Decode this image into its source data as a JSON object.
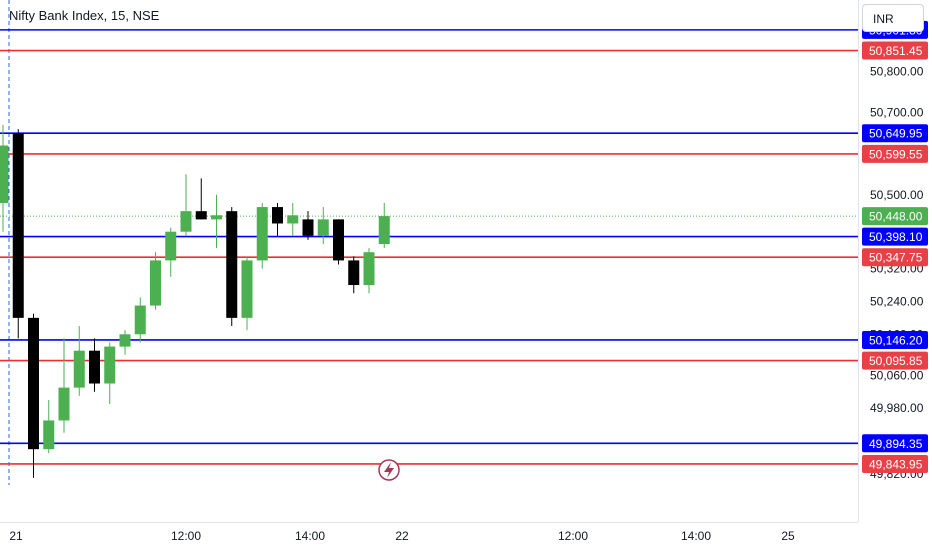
{
  "header": {
    "title": "Nifty Bank Index, 15, NSE",
    "currency": "INR"
  },
  "colors": {
    "blue": "#0000ff",
    "red": "#ef2f2f",
    "green": "#4caf50",
    "current_green": "#4caf50",
    "black": "#000000",
    "label_red": "#e84046",
    "dotted_current": "#4caf50"
  },
  "icons": {
    "event_marker": "lightning-icon"
  },
  "chart_data": {
    "type": "candlestick",
    "title": "Nifty Bank Index, 15, NSE",
    "ylim": [
      49800,
      50960
    ],
    "y_ticks": [
      "50,800.00",
      "50,700.00",
      "50,500.00",
      "50,320.00",
      "50,240.00",
      "50,160.00",
      "50,060.00",
      "49,980.00",
      "49,820.00"
    ],
    "x_labels": [
      "21",
      "12:00",
      "14:00",
      "22",
      "12:00",
      "14:00",
      "25"
    ],
    "current_price": {
      "value": 50448.0,
      "label": "50,448.00"
    },
    "levels": [
      {
        "value": 50901.8,
        "label": "50,901.80",
        "color": "blue"
      },
      {
        "value": 50851.45,
        "label": "50,851.45",
        "color": "red"
      },
      {
        "value": 50649.95,
        "label": "50,649.95",
        "color": "blue"
      },
      {
        "value": 50599.55,
        "label": "50,599.55",
        "color": "red"
      },
      {
        "value": 50398.1,
        "label": "50,398.10",
        "color": "blue"
      },
      {
        "value": 50347.75,
        "label": "50,347.75",
        "color": "red"
      },
      {
        "value": 50146.2,
        "label": "50,146.20",
        "color": "blue"
      },
      {
        "value": 50095.85,
        "label": "50,095.85",
        "color": "red"
      },
      {
        "value": 49894.35,
        "label": "49,894.35",
        "color": "blue"
      },
      {
        "value": 49843.95,
        "label": "49,843.95",
        "color": "red"
      }
    ],
    "candles": [
      {
        "o": 50480,
        "h": 50670,
        "l": 50410,
        "c": 50620
      },
      {
        "o": 50650,
        "h": 50660,
        "l": 50150,
        "c": 50200
      },
      {
        "o": 50200,
        "h": 50210,
        "l": 49810,
        "c": 49880
      },
      {
        "o": 49880,
        "h": 50000,
        "l": 49870,
        "c": 49950
      },
      {
        "o": 49950,
        "h": 50150,
        "l": 49920,
        "c": 50030
      },
      {
        "o": 50030,
        "h": 50180,
        "l": 50010,
        "c": 50120
      },
      {
        "o": 50120,
        "h": 50150,
        "l": 50020,
        "c": 50040
      },
      {
        "o": 50040,
        "h": 50140,
        "l": 49990,
        "c": 50130
      },
      {
        "o": 50130,
        "h": 50170,
        "l": 50110,
        "c": 50160
      },
      {
        "o": 50160,
        "h": 50250,
        "l": 50140,
        "c": 50230
      },
      {
        "o": 50230,
        "h": 50360,
        "l": 50220,
        "c": 50340
      },
      {
        "o": 50340,
        "h": 50420,
        "l": 50300,
        "c": 50410
      },
      {
        "o": 50410,
        "h": 50550,
        "l": 50400,
        "c": 50460
      },
      {
        "o": 50460,
        "h": 50540,
        "l": 50440,
        "c": 50440
      },
      {
        "o": 50440,
        "h": 50500,
        "l": 50370,
        "c": 50450
      },
      {
        "o": 50460,
        "h": 50470,
        "l": 50180,
        "c": 50200
      },
      {
        "o": 50200,
        "h": 50350,
        "l": 50170,
        "c": 50340
      },
      {
        "o": 50340,
        "h": 50480,
        "l": 50320,
        "c": 50470
      },
      {
        "o": 50470,
        "h": 50480,
        "l": 50400,
        "c": 50430
      },
      {
        "o": 50430,
        "h": 50480,
        "l": 50400,
        "c": 50450
      },
      {
        "o": 50440,
        "h": 50460,
        "l": 50390,
        "c": 50400
      },
      {
        "o": 50400,
        "h": 50470,
        "l": 50380,
        "c": 50440
      },
      {
        "o": 50440,
        "h": 50440,
        "l": 50330,
        "c": 50340
      },
      {
        "o": 50340,
        "h": 50350,
        "l": 50260,
        "c": 50280
      },
      {
        "o": 50280,
        "h": 50370,
        "l": 50260,
        "c": 50360
      },
      {
        "o": 50380,
        "h": 50480,
        "l": 50370,
        "c": 50448
      }
    ]
  }
}
